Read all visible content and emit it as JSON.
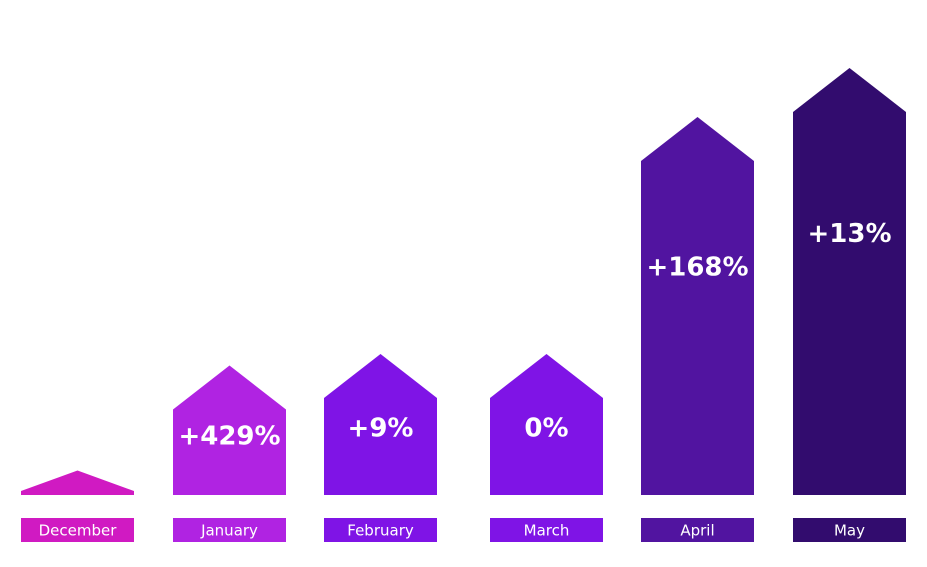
{
  "chart_data": {
    "type": "bar",
    "style": "arrow-columns",
    "categories": [
      "December",
      "January",
      "February",
      "March",
      "April",
      "May"
    ],
    "values": [
      7,
      37,
      40.3,
      40.3,
      108,
      122
    ],
    "percent_change_labels": [
      "",
      "+429%",
      "+9%",
      "0%",
      "+168%",
      "+13%"
    ],
    "colors": [
      "#d01ac2",
      "#b023e2",
      "#7f14e6",
      "#7f14e6",
      "#5114a0",
      "#320c6e"
    ],
    "ylim": [
      0,
      130
    ],
    "grid": false,
    "legend": "none"
  }
}
